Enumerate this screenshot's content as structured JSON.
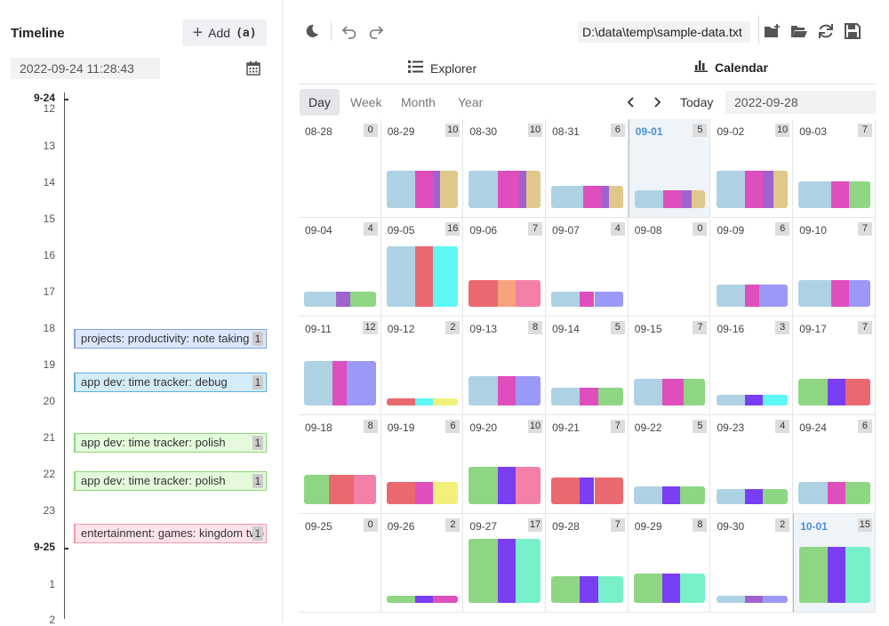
{
  "timeline": {
    "title": "Timeline",
    "add_label": "Add",
    "add_shortcut": "(a)",
    "datetime": "2022-09-24 11:28:43",
    "hours": [
      "9-24",
      "12",
      "13",
      "14",
      "15",
      "16",
      "17",
      "18",
      "19",
      "20",
      "21",
      "22",
      "23",
      "9-25",
      "1",
      "2"
    ],
    "events": [
      {
        "label": "projects: productivity: note taking",
        "count": "1",
        "color": "#dbe7ff",
        "border": "#7fa0e0"
      },
      {
        "label": "app dev: time tracker: debug",
        "count": "1",
        "color": "#d3ecf9",
        "border": "#5fb0dd"
      },
      {
        "label": "app dev: time tracker: polish",
        "count": "1",
        "color": "#e3fadb",
        "border": "#8fd67a"
      },
      {
        "label": "app dev: time tracker: polish",
        "count": "1",
        "color": "#e3fadb",
        "border": "#8fd67a"
      },
      {
        "label": "entertainment: games: kingdom two crowns",
        "count": "1",
        "color": "#ffe3ea",
        "border": "#f09aaa"
      }
    ]
  },
  "toolbar": {
    "file_path": "D:\\data\\temp\\sample-data.txt",
    "icons": [
      "moon-icon",
      "undo-icon",
      "redo-icon",
      "new-folder-icon",
      "open-folder-icon",
      "refresh-icon",
      "save-icon"
    ]
  },
  "views": {
    "explorer": "Explorer",
    "calendar": "Calendar",
    "active": "Calendar"
  },
  "calendar": {
    "ranges": [
      "Day",
      "Week",
      "Month",
      "Year"
    ],
    "active_range": "Day",
    "today_label": "Today",
    "selected_date": "2022-09-28",
    "colors": {
      "A": "#aed2e3",
      "B": "#de4fbd",
      "C": "#9f63cf",
      "D": "#e0c88b",
      "E": "#ed9a4a",
      "F": "#ea6970",
      "G": "#8fd684",
      "H": "#7a3ef2",
      "I": "#5ef7f5",
      "J": "#f2f07a",
      "K": "#f380a6",
      "L": "#9b99f7",
      "M": "#f7a37e",
      "N": "#77f0c9",
      "O": "#5187e0"
    },
    "weeks": [
      [
        {
          "date": "08-28",
          "count": "0",
          "level": 0,
          "segs": []
        },
        {
          "date": "08-29",
          "count": "10",
          "level": 0.42,
          "segs": [
            [
              "A",
              0.4
            ],
            [
              "B",
              0.25
            ],
            [
              "C",
              0.1
            ],
            [
              "D",
              0.25
            ]
          ]
        },
        {
          "date": "08-30",
          "count": "10",
          "level": 0.42,
          "segs": [
            [
              "A",
              0.4
            ],
            [
              "B",
              0.3
            ],
            [
              "C",
              0.1
            ],
            [
              "D",
              0.2
            ]
          ]
        },
        {
          "date": "08-31",
          "count": "6",
          "level": 0.25,
          "segs": [
            [
              "A",
              0.45
            ],
            [
              "B",
              0.25
            ],
            [
              "C",
              0.1
            ],
            [
              "D",
              0.2
            ]
          ]
        },
        {
          "date": "09-01",
          "count": "5",
          "level": 0.2,
          "segs": [
            [
              "A",
              0.4
            ],
            [
              "B",
              0.25
            ],
            [
              "C",
              0.15
            ],
            [
              "D",
              0.2
            ]
          ]
        },
        {
          "date": "09-02",
          "count": "10",
          "level": 0.42,
          "segs": [
            [
              "A",
              0.4
            ],
            [
              "B",
              0.25
            ],
            [
              "C",
              0.15
            ],
            [
              "D",
              0.2
            ]
          ]
        },
        {
          "date": "09-03",
          "count": "7",
          "level": 0.3,
          "segs": [
            [
              "A",
              0.45
            ],
            [
              "B",
              0.25
            ],
            [
              "G",
              0.3
            ]
          ]
        }
      ],
      [
        {
          "date": "09-04",
          "count": "4",
          "level": 0.17,
          "segs": [
            [
              "A",
              0.45
            ],
            [
              "C",
              0.2
            ],
            [
              "G",
              0.35
            ]
          ]
        },
        {
          "date": "09-05",
          "count": "16",
          "level": 0.68,
          "segs": [
            [
              "A",
              0.4
            ],
            [
              "F",
              0.25
            ],
            [
              "I",
              0.35
            ]
          ]
        },
        {
          "date": "09-06",
          "count": "7",
          "level": 0.3,
          "segs": [
            [
              "F",
              0.4
            ],
            [
              "M",
              0.25
            ],
            [
              "K",
              0.35
            ]
          ]
        },
        {
          "date": "09-07",
          "count": "4",
          "level": 0.17,
          "segs": [
            [
              "A",
              0.4
            ],
            [
              "B",
              0.2
            ],
            [
              "L",
              0.4
            ]
          ]
        },
        {
          "date": "09-08",
          "count": "0",
          "level": 0,
          "segs": []
        },
        {
          "date": "09-09",
          "count": "6",
          "level": 0.25,
          "segs": [
            [
              "A",
              0.4
            ],
            [
              "B",
              0.2
            ],
            [
              "L",
              0.4
            ]
          ]
        },
        {
          "date": "09-10",
          "count": "7",
          "level": 0.3,
          "segs": [
            [
              "A",
              0.45
            ],
            [
              "B",
              0.25
            ],
            [
              "L",
              0.3
            ]
          ]
        }
      ],
      [
        {
          "date": "09-11",
          "count": "12",
          "level": 0.5,
          "segs": [
            [
              "A",
              0.4
            ],
            [
              "B",
              0.2
            ],
            [
              "L",
              0.4
            ]
          ]
        },
        {
          "date": "09-12",
          "count": "2",
          "level": 0.08,
          "segs": [
            [
              "F",
              0.4
            ],
            [
              "I",
              0.25
            ],
            [
              "J",
              0.35
            ]
          ]
        },
        {
          "date": "09-13",
          "count": "8",
          "level": 0.33,
          "segs": [
            [
              "A",
              0.4
            ],
            [
              "B",
              0.25
            ],
            [
              "L",
              0.35
            ]
          ]
        },
        {
          "date": "09-14",
          "count": "5",
          "level": 0.2,
          "segs": [
            [
              "A",
              0.4
            ],
            [
              "B",
              0.25
            ],
            [
              "G",
              0.35
            ]
          ]
        },
        {
          "date": "09-15",
          "count": "7",
          "level": 0.3,
          "segs": [
            [
              "A",
              0.4
            ],
            [
              "B",
              0.3
            ],
            [
              "G",
              0.3
            ]
          ]
        },
        {
          "date": "09-16",
          "count": "3",
          "level": 0.12,
          "segs": [
            [
              "A",
              0.4
            ],
            [
              "H",
              0.25
            ],
            [
              "I",
              0.35
            ]
          ]
        },
        {
          "date": "09-17",
          "count": "7",
          "level": 0.3,
          "segs": [
            [
              "G",
              0.4
            ],
            [
              "H",
              0.25
            ],
            [
              "F",
              0.35
            ]
          ]
        }
      ],
      [
        {
          "date": "09-18",
          "count": "8",
          "level": 0.33,
          "segs": [
            [
              "G",
              0.35
            ],
            [
              "F",
              0.35
            ],
            [
              "K",
              0.3
            ]
          ]
        },
        {
          "date": "09-19",
          "count": "6",
          "level": 0.25,
          "segs": [
            [
              "F",
              0.4
            ],
            [
              "B",
              0.25
            ],
            [
              "J",
              0.35
            ]
          ]
        },
        {
          "date": "09-20",
          "count": "10",
          "level": 0.42,
          "segs": [
            [
              "G",
              0.4
            ],
            [
              "H",
              0.25
            ],
            [
              "K",
              0.35
            ]
          ]
        },
        {
          "date": "09-21",
          "count": "7",
          "level": 0.3,
          "segs": [
            [
              "F",
              0.4
            ],
            [
              "H",
              0.2
            ],
            [
              "F",
              0.4
            ]
          ]
        },
        {
          "date": "09-22",
          "count": "5",
          "level": 0.2,
          "segs": [
            [
              "A",
              0.4
            ],
            [
              "H",
              0.25
            ],
            [
              "G",
              0.35
            ]
          ]
        },
        {
          "date": "09-23",
          "count": "4",
          "level": 0.17,
          "segs": [
            [
              "A",
              0.4
            ],
            [
              "H",
              0.25
            ],
            [
              "G",
              0.35
            ]
          ]
        },
        {
          "date": "09-24",
          "count": "6",
          "level": 0.25,
          "segs": [
            [
              "A",
              0.4
            ],
            [
              "B",
              0.25
            ],
            [
              "G",
              0.35
            ]
          ]
        }
      ],
      [
        {
          "date": "09-25",
          "count": "0",
          "level": 0,
          "segs": []
        },
        {
          "date": "09-26",
          "count": "2",
          "level": 0.08,
          "segs": [
            [
              "G",
              0.4
            ],
            [
              "H",
              0.25
            ],
            [
              "B",
              0.35
            ]
          ]
        },
        {
          "date": "09-27",
          "count": "17",
          "level": 0.72,
          "segs": [
            [
              "G",
              0.4
            ],
            [
              "H",
              0.25
            ],
            [
              "N",
              0.35
            ]
          ]
        },
        {
          "date": "09-28",
          "count": "7",
          "level": 0.3,
          "segs": [
            [
              "G",
              0.4
            ],
            [
              "H",
              0.25
            ],
            [
              "N",
              0.35
            ]
          ]
        },
        {
          "date": "09-29",
          "count": "8",
          "level": 0.33,
          "segs": [
            [
              "G",
              0.4
            ],
            [
              "H",
              0.25
            ],
            [
              "N",
              0.35
            ]
          ]
        },
        {
          "date": "09-30",
          "count": "2",
          "level": 0.08,
          "segs": [
            [
              "A",
              0.4
            ],
            [
              "C",
              0.25
            ],
            [
              "L",
              0.35
            ]
          ]
        },
        {
          "date": "10-01",
          "count": "15",
          "level": 0.63,
          "segs": [
            [
              "G",
              0.4
            ],
            [
              "H",
              0.25
            ],
            [
              "N",
              0.35
            ]
          ]
        }
      ]
    ],
    "today_date": "10-01",
    "highlight_date": "09-01"
  }
}
